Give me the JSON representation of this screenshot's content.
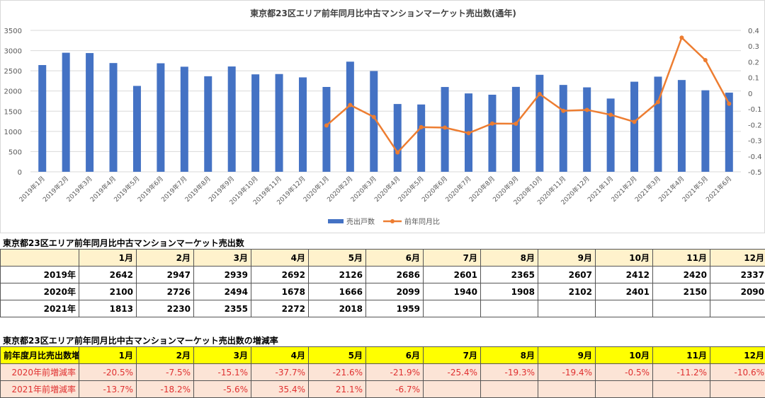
{
  "chart_data": {
    "type": "bar+line",
    "title": "東京都23区エリア前年同月比中古マンションマーケット売出数(通年)",
    "categories": [
      "2019年1月",
      "2019年2月",
      "2019年3月",
      "2019年4月",
      "2019年5月",
      "2019年6月",
      "2019年7月",
      "2019年8月",
      "2019年9月",
      "2019年10月",
      "2019年11月",
      "2019年12月",
      "2020年1月",
      "2020年2月",
      "2020年3月",
      "2020年4月",
      "2020年5月",
      "2020年6月",
      "2020年7月",
      "2020年8月",
      "2020年9月",
      "2020年10月",
      "2020年11月",
      "2020年12月",
      "2021年1月",
      "2021年2月",
      "2021年3月",
      "2021年4月",
      "2021年5月",
      "2021年6月"
    ],
    "series": [
      {
        "name": "売出戸数",
        "type": "bar",
        "axis": "left",
        "color": "#4472c4",
        "values": [
          2642,
          2947,
          2939,
          2692,
          2126,
          2686,
          2601,
          2365,
          2607,
          2412,
          2420,
          2337,
          2100,
          2726,
          2494,
          1678,
          1666,
          2099,
          1940,
          1908,
          2102,
          2401,
          2150,
          2090,
          1813,
          2230,
          2355,
          2272,
          2018,
          1959
        ]
      },
      {
        "name": "前年同月比",
        "type": "line",
        "axis": "right",
        "color": "#ed7d31",
        "values": [
          null,
          null,
          null,
          null,
          null,
          null,
          null,
          null,
          null,
          null,
          null,
          null,
          -0.205,
          -0.075,
          -0.151,
          -0.377,
          -0.216,
          -0.219,
          -0.254,
          -0.193,
          -0.194,
          -0.005,
          -0.112,
          -0.106,
          -0.137,
          -0.182,
          -0.056,
          0.354,
          0.211,
          -0.067
        ]
      }
    ],
    "ylim": [
      0,
      3500
    ],
    "yticks": [
      "0",
      "500",
      "1000",
      "1500",
      "2000",
      "2500",
      "3000",
      "3500"
    ],
    "y2lim": [
      -0.5,
      0.4
    ],
    "y2ticks": [
      "-0.5",
      "-0.4",
      "-0.3",
      "-0.2",
      "-0.1",
      "0",
      "0.1",
      "0.2",
      "0.3",
      "0.4"
    ],
    "grid": true,
    "legend": "bottom"
  },
  "table1": {
    "title": "東京都23区エリア前年同月比中古マンションマーケット売出数",
    "header": [
      "",
      "1月",
      "2月",
      "3月",
      "4月",
      "5月",
      "6月",
      "7月",
      "8月",
      "9月",
      "10月",
      "11月",
      "12月"
    ],
    "rows": [
      [
        "2019年",
        "2642",
        "2947",
        "2939",
        "2692",
        "2126",
        "2686",
        "2601",
        "2365",
        "2607",
        "2412",
        "2420",
        "2337"
      ],
      [
        "2020年",
        "2100",
        "2726",
        "2494",
        "1678",
        "1666",
        "2099",
        "1940",
        "1908",
        "2102",
        "2401",
        "2150",
        "2090"
      ],
      [
        "2021年",
        "1813",
        "2230",
        "2355",
        "2272",
        "2018",
        "1959",
        "",
        "",
        "",
        "",
        "",
        ""
      ]
    ]
  },
  "table2": {
    "title": "東京都23区エリア前年同月比中古マンションマーケット売出数の増減率",
    "header": [
      "前年度月比売出数増減率",
      "1月",
      "2月",
      "3月",
      "4月",
      "5月",
      "6月",
      "7月",
      "8月",
      "9月",
      "10月",
      "11月",
      "12月"
    ],
    "rows": [
      [
        "2020年前増減率",
        "-20.5%",
        "-7.5%",
        "-15.1%",
        "-37.7%",
        "-21.6%",
        "-21.9%",
        "-25.4%",
        "-19.3%",
        "-19.4%",
        "-0.5%",
        "-11.2%",
        "-10.6%"
      ],
      [
        "2021年前増減率",
        "-13.7%",
        "-18.2%",
        "-5.6%",
        "35.4%",
        "21.1%",
        "-6.7%",
        "",
        "",
        "",
        "",
        "",
        ""
      ]
    ]
  }
}
